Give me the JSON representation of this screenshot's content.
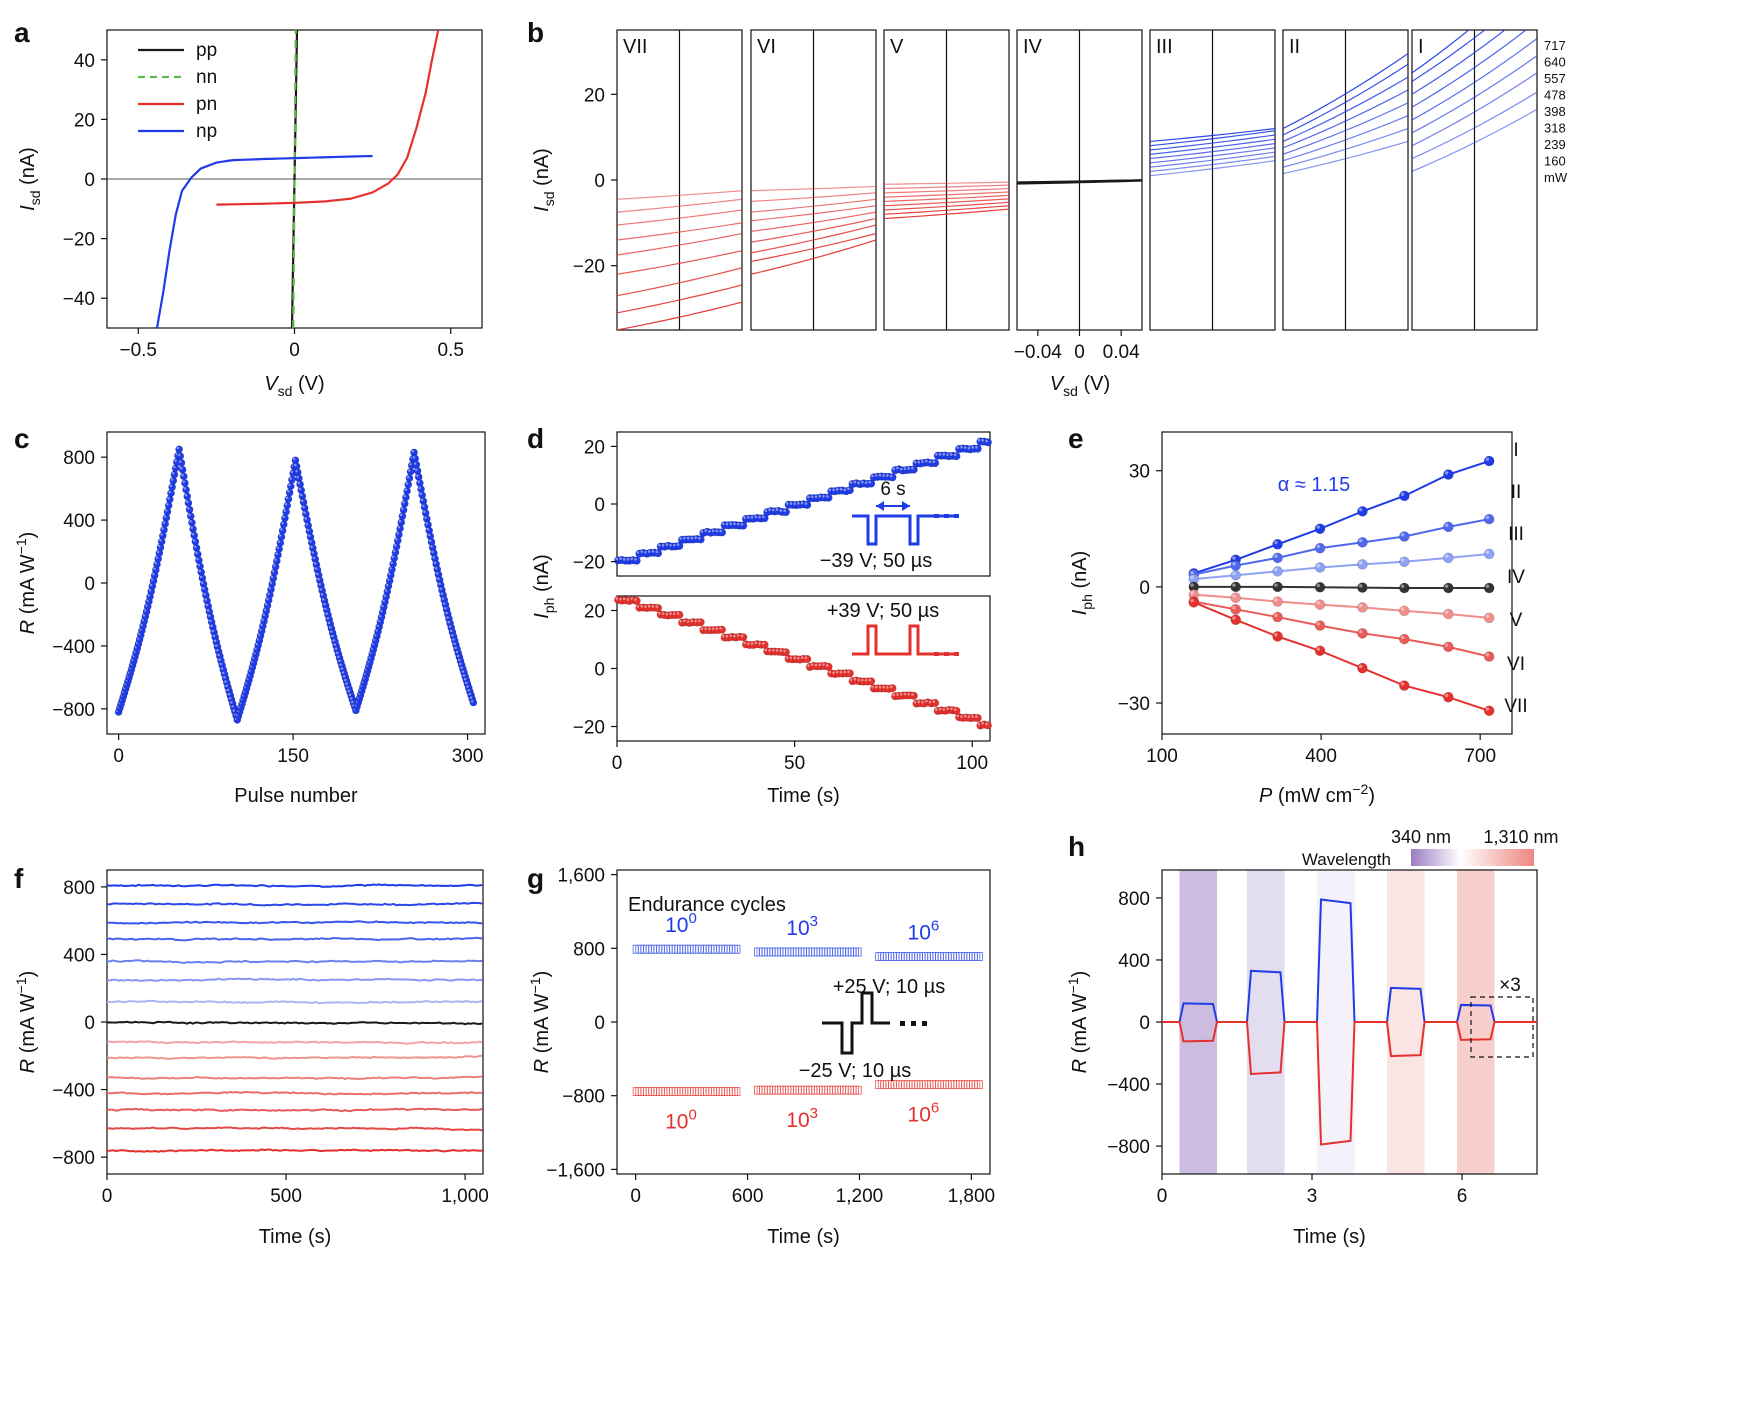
{
  "colors": {
    "blue": "#1f3ce8",
    "red": "#e5312e",
    "green": "#5cb94a",
    "black": "#1a1a1a",
    "purple": "#9a7cc2"
  },
  "chart_data": [
    {
      "id": "a",
      "type": "line",
      "panel_label": "a",
      "xlabel": "V",
      "xlabel_sub": "sd",
      "xlabel_unit": " (V)",
      "ylabel": "I",
      "ylabel_sub": "sd",
      "ylabel_unit": " (nA)",
      "xlim": [
        -0.6,
        0.6
      ],
      "ylim": [
        -50,
        50
      ],
      "xticks": [
        -0.5,
        0,
        0.5
      ],
      "xtick_labels": [
        "−0.5",
        "0",
        "0.5"
      ],
      "yticks": [
        -40,
        -20,
        0,
        20,
        40
      ],
      "ytick_labels": [
        "−40",
        "−20",
        "0",
        "20",
        "40"
      ],
      "legend_position": "top-left",
      "series": [
        {
          "name": "pp",
          "color": "#1a1a1a",
          "dash": false,
          "x": [
            -0.008,
            0.008
          ],
          "y": [
            -50,
            50
          ]
        },
        {
          "name": "nn",
          "color": "#5cb94a",
          "dash": true,
          "x": [
            -0.004,
            0.004
          ],
          "y": [
            -50,
            50
          ]
        },
        {
          "name": "pn",
          "color": "#e5312e",
          "dash": false,
          "x": [
            -0.25,
            -0.1,
            0.0,
            0.1,
            0.18,
            0.25,
            0.3,
            0.33,
            0.36,
            0.39,
            0.42,
            0.44,
            0.46
          ],
          "y": [
            -8.6,
            -8.3,
            -8.0,
            -7.5,
            -6.6,
            -4.5,
            -1.5,
            1.5,
            7,
            17,
            29,
            40,
            50
          ]
        },
        {
          "name": "np",
          "color": "#1f3ce8",
          "dash": false,
          "x": [
            -0.44,
            -0.42,
            -0.4,
            -0.38,
            -0.36,
            -0.33,
            -0.3,
            -0.25,
            -0.2,
            -0.1,
            0.0,
            0.1,
            0.2,
            0.25
          ],
          "y": [
            -50,
            -38,
            -24,
            -12,
            -4,
            0.5,
            3.5,
            5.5,
            6.3,
            6.7,
            7.0,
            7.3,
            7.6,
            7.7
          ]
        }
      ]
    },
    {
      "id": "b",
      "type": "line",
      "panel_label": "b",
      "xlabel": "V",
      "xlabel_sub": "sd",
      "xlabel_unit": " (V)",
      "ylabel": "I",
      "ylabel_sub": "sd",
      "ylabel_unit": " (nA)",
      "ylim": [
        -35,
        35
      ],
      "xlim": [
        -0.06,
        0.06
      ],
      "yticks": [
        -20,
        0,
        20
      ],
      "ytick_labels": [
        "−20",
        "0",
        "20"
      ],
      "xticks": [
        -0.04,
        0,
        0.04
      ],
      "xtick_labels": [
        "−0.04",
        "0",
        "0.04"
      ],
      "subpanels": [
        "VII",
        "VI",
        "V",
        "IV",
        "III",
        "II",
        "I"
      ],
      "subpanel_series": [
        {
          "color": "#e5312e",
          "left": [
            -4.5,
            -7.5,
            -10.5,
            -14,
            -17.5,
            -22,
            -27,
            -31,
            -35
          ],
          "right": [
            -2.5,
            -4.5,
            -7,
            -10,
            -12.5,
            -16.5,
            -20.5,
            -24.5,
            -28.5
          ]
        },
        {
          "color": "#e5312e",
          "left": [
            -2.5,
            -5,
            -7.5,
            -9.5,
            -12,
            -14.5,
            -17,
            -19,
            -22
          ],
          "right": [
            -1.5,
            -3,
            -4.5,
            -6,
            -7.5,
            -9,
            -10.5,
            -12.5,
            -14
          ]
        },
        {
          "color": "#e5312e",
          "left": [
            -1,
            -2,
            -3,
            -4,
            -5,
            -6,
            -7,
            -8,
            -9
          ],
          "right": [
            -0.5,
            -1.2,
            -2,
            -2.8,
            -3.6,
            -4.4,
            -5.2,
            -6,
            -6.8
          ]
        },
        {
          "color": "#1a1a1a",
          "left": [
            -0.5,
            -0.7,
            -0.9,
            -0.6
          ],
          "right": [
            0.0,
            -0.1,
            -0.2,
            0.0
          ]
        },
        {
          "color": "#1f3ce8",
          "left": [
            1,
            2,
            3,
            4,
            5,
            6,
            7,
            8,
            9
          ],
          "right": [
            4.5,
            5.5,
            6.5,
            7.5,
            8.5,
            9.5,
            10.5,
            11.5,
            12
          ]
        },
        {
          "color": "#1f3ce8",
          "left": [
            1.5,
            3,
            4.5,
            6,
            7.5,
            9,
            10.5,
            12
          ],
          "right": [
            9,
            12,
            15,
            18,
            21,
            24,
            27,
            29.5
          ]
        },
        {
          "color": "#1f3ce8",
          "left": [
            2,
            5,
            8,
            11,
            14,
            17,
            20,
            23,
            25
          ],
          "right": [
            16.5,
            20.5,
            25,
            29,
            33,
            37,
            41,
            45,
            49
          ]
        }
      ],
      "power_labels": [
        "717",
        "640",
        "557",
        "478",
        "398",
        "318",
        "239",
        "160",
        "mW"
      ]
    },
    {
      "id": "c",
      "type": "scatter",
      "panel_label": "c",
      "xlabel": "Pulse number",
      "ylabel": "R",
      "ylabel_unit": " (mA W",
      "ylabel_sup": "−1",
      "ylabel_close": ")",
      "xlim": [
        -10,
        315
      ],
      "ylim": [
        -960,
        960
      ],
      "xticks": [
        0,
        150,
        300
      ],
      "xtick_labels": [
        "0",
        "150",
        "300"
      ],
      "yticks": [
        -800,
        -400,
        0,
        400,
        800
      ],
      "ytick_labels": [
        "−800",
        "−400",
        "0",
        "400",
        "800"
      ],
      "color": "#1f3ce8",
      "turning_points": {
        "x": [
          0,
          52,
          102,
          152,
          204,
          254,
          305
        ],
        "y": [
          -820,
          850,
          -870,
          780,
          -810,
          830,
          -760
        ]
      }
    },
    {
      "id": "d",
      "type": "scatter",
      "panel_label": "d",
      "xlabel": "Time (s)",
      "ylabel": "I",
      "ylabel_sub": "ph",
      "ylabel_unit": " (nA)",
      "xlim": [
        0,
        105
      ],
      "ylim": [
        -25,
        25
      ],
      "xticks": [
        0,
        50,
        100
      ],
      "xtick_labels": [
        "0",
        "50",
        "100"
      ],
      "yticks": [
        -20,
        0,
        20
      ],
      "ytick_labels": [
        "−20",
        "0",
        "20"
      ],
      "step_period": 6,
      "top": {
        "color": "#1f3ce8",
        "start": -19.5,
        "end": 21.5,
        "pulse_label": "−39 V; 50 µs",
        "period_label": "6 s"
      },
      "bottom": {
        "color": "#e5312e",
        "start": 23.5,
        "end": -19.5,
        "pulse_label": "+39 V; 50 µs"
      }
    },
    {
      "id": "e",
      "type": "line",
      "panel_label": "e",
      "xlabel": "P",
      "xlabel_unit": " (mW cm",
      "xlabel_sup": "−2",
      "xlabel_close": ")",
      "ylabel": "I",
      "ylabel_sub": "ph",
      "ylabel_unit": " (nA)",
      "xlim": [
        100,
        760
      ],
      "ylim": [
        -38,
        40
      ],
      "xticks": [
        100,
        400,
        700
      ],
      "xtick_labels": [
        "100",
        "400",
        "700"
      ],
      "yticks": [
        -30,
        0,
        30
      ],
      "ytick_labels": [
        "−30",
        "0",
        "30"
      ],
      "x": [
        160,
        239,
        318,
        398,
        478,
        557,
        640,
        717
      ],
      "annotation": "α ≈ 1.15",
      "series": [
        {
          "name": "I",
          "color": "#1f3ce8",
          "y": [
            3.5,
            7,
            11,
            15,
            19.5,
            23.5,
            29,
            32.5
          ]
        },
        {
          "name": "II",
          "color": "#4f69ee",
          "y": [
            3.2,
            5.5,
            7.5,
            10,
            11.5,
            13,
            15.5,
            17.5
          ]
        },
        {
          "name": "III",
          "color": "#8ea1f4",
          "y": [
            2,
            3,
            4,
            5,
            5.8,
            6.5,
            7.5,
            8.5
          ]
        },
        {
          "name": "IV",
          "color": "#333333",
          "y": [
            0,
            0,
            0,
            -0.1,
            -0.2,
            -0.3,
            -0.3,
            -0.3
          ]
        },
        {
          "name": "V",
          "color": "#f08e8c",
          "y": [
            -2,
            -2.8,
            -3.8,
            -4.6,
            -5.3,
            -6.2,
            -7,
            -8
          ]
        },
        {
          "name": "VI",
          "color": "#ea5a57",
          "y": [
            -3.8,
            -5.8,
            -7.8,
            -10,
            -12,
            -13.5,
            -15.5,
            -18
          ]
        },
        {
          "name": "VII",
          "color": "#e5312e",
          "y": [
            -4,
            -8.5,
            -12.8,
            -16.5,
            -21,
            -25.5,
            -28.5,
            -32
          ]
        }
      ]
    },
    {
      "id": "f",
      "type": "line",
      "panel_label": "f",
      "xlabel": "Time (s)",
      "ylabel": "R",
      "ylabel_unit": " (mA W",
      "ylabel_sup": "−1",
      "ylabel_close": ")",
      "xlim": [
        0,
        1050
      ],
      "ylim": [
        -900,
        900
      ],
      "xticks": [
        0,
        500,
        1000
      ],
      "xtick_labels": [
        "0",
        "500",
        "1,000"
      ],
      "yticks": [
        -800,
        -400,
        0,
        400,
        800
      ],
      "ytick_labels": [
        "−800",
        "−400",
        "0",
        "400",
        "800"
      ],
      "levels": [
        810,
        700,
        590,
        490,
        360,
        250,
        120,
        -5,
        -120,
        -210,
        -330,
        -420,
        -520,
        -630,
        -760
      ]
    },
    {
      "id": "g",
      "type": "scatter",
      "panel_label": "g",
      "xlabel": "Time (s)",
      "ylabel": "R",
      "ylabel_unit": " (mA W",
      "ylabel_sup": "−1",
      "ylabel_close": ")",
      "xlim": [
        -100,
        1900
      ],
      "ylim": [
        -1650,
        1650
      ],
      "xticks": [
        0,
        600,
        1200,
        1800
      ],
      "xtick_labels": [
        "0",
        "600",
        "1,200",
        "1,800"
      ],
      "yticks": [
        -1600,
        -800,
        0,
        800,
        1600
      ],
      "ytick_labels": [
        "−1,600",
        "−800",
        "0",
        "800",
        "1,600"
      ],
      "title": "Endurance cycles",
      "blocks": [
        {
          "x0": 0,
          "x1": 550,
          "pos": 790,
          "neg": -755,
          "label_base": "10",
          "label_exp": "0"
        },
        {
          "x0": 650,
          "x1": 1200,
          "pos": 760,
          "neg": -740,
          "label_base": "10",
          "label_exp": "3"
        },
        {
          "x0": 1300,
          "x1": 1850,
          "pos": 710,
          "neg": -680,
          "label_base": "10",
          "label_exp": "6"
        }
      ],
      "pulse_pos": "+25 V; 10 µs",
      "pulse_neg": "−25 V; 10 µs"
    },
    {
      "id": "h",
      "type": "line",
      "panel_label": "h",
      "xlabel": "Time (s)",
      "ylabel": "R",
      "ylabel_unit": " (mA W",
      "ylabel_sup": "−1",
      "ylabel_close": ")",
      "xlim": [
        0,
        7.5
      ],
      "ylim": [
        -980,
        980
      ],
      "xticks": [
        0,
        3,
        6
      ],
      "xtick_labels": [
        "0",
        "3",
        "6"
      ],
      "yticks": [
        -800,
        -400,
        0,
        400,
        800
      ],
      "ytick_labels": [
        "−800",
        "−400",
        "0",
        "400",
        "800"
      ],
      "colorbar_title": "Wavelength",
      "colorbar_min": "340 nm",
      "colorbar_max": "1,310 nm",
      "magnification": "×3",
      "bands": [
        {
          "x0": 0.35,
          "x1": 1.1,
          "fill": "#9a7cc2",
          "opacity": 0.5,
          "pos": 120,
          "neg": -125
        },
        {
          "x0": 1.7,
          "x1": 2.45,
          "fill": "#c2b3de",
          "opacity": 0.45,
          "pos": 330,
          "neg": -335
        },
        {
          "x0": 3.1,
          "x1": 3.85,
          "fill": "#ece8f6",
          "opacity": 0.6,
          "pos": 790,
          "neg": -790
        },
        {
          "x0": 4.5,
          "x1": 5.25,
          "fill": "#f6c6c3",
          "opacity": 0.45,
          "pos": 220,
          "neg": -220
        },
        {
          "x0": 5.9,
          "x1": 6.65,
          "fill": "#f1a09a",
          "opacity": 0.5,
          "pos": 110,
          "neg": -115
        }
      ]
    }
  ]
}
